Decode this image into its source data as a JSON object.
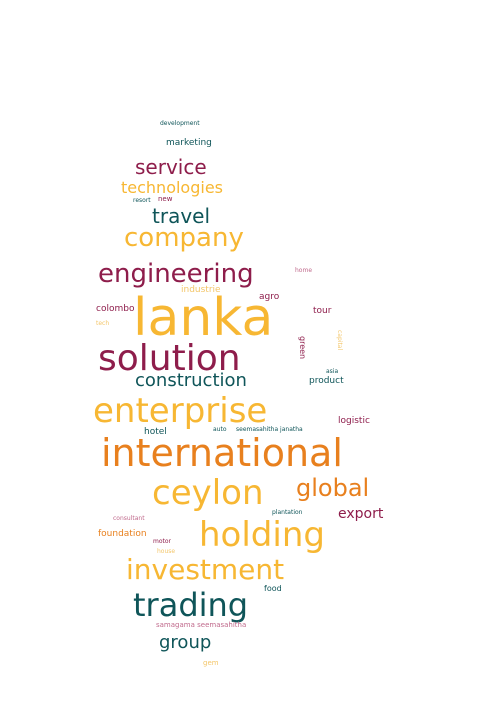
{
  "words": [
    {
      "text": "development",
      "color": "teal"
    },
    {
      "text": "marketing",
      "color": "teal"
    },
    {
      "text": "service",
      "color": "maroon"
    },
    {
      "text": "technologies",
      "color": "yellow"
    },
    {
      "text": "resort",
      "color": "teal"
    },
    {
      "text": "new",
      "color": "maroon"
    },
    {
      "text": "travel",
      "color": "teal"
    },
    {
      "text": "company",
      "color": "yellow"
    },
    {
      "text": "engineering",
      "color": "maroon"
    },
    {
      "text": "lanka",
      "color": "yellow"
    },
    {
      "text": "industrie",
      "color": "lt"
    },
    {
      "text": "agro",
      "color": "maroon"
    },
    {
      "text": "colombo",
      "color": "maroon"
    },
    {
      "text": "tour",
      "color": "maroon"
    },
    {
      "text": "solution",
      "color": "maroon"
    },
    {
      "text": "green",
      "color": "maroon"
    },
    {
      "text": "construction",
      "color": "teal"
    },
    {
      "text": "product",
      "color": "teal"
    },
    {
      "text": "enterprise",
      "color": "yellow"
    },
    {
      "text": "asia",
      "color": "teal"
    },
    {
      "text": "logistic",
      "color": "maroon"
    },
    {
      "text": "hotel",
      "color": "teal"
    },
    {
      "text": "international",
      "color": "orange"
    },
    {
      "text": "ceylon",
      "color": "yellow"
    },
    {
      "text": "global",
      "color": "orange"
    },
    {
      "text": "export",
      "color": "maroon"
    },
    {
      "text": "holding",
      "color": "yellow"
    },
    {
      "text": "plantation",
      "color": "teal"
    },
    {
      "text": "consultant",
      "color": "pink"
    },
    {
      "text": "foundation",
      "color": "orange"
    },
    {
      "text": "motor",
      "color": "maroon"
    },
    {
      "text": "house",
      "color": "lt"
    },
    {
      "text": "investment",
      "color": "yellow"
    },
    {
      "text": "food",
      "color": "teal"
    },
    {
      "text": "trading",
      "color": "teal"
    },
    {
      "text": "samagama seemasahitha",
      "color": "pink"
    },
    {
      "text": "group",
      "color": "teal"
    },
    {
      "text": "gem",
      "color": "lt"
    },
    {
      "text": "seemasahitha janatha",
      "color": "teal"
    },
    {
      "text": "auto",
      "color": "teal"
    },
    {
      "text": "tech",
      "color": "lt"
    },
    {
      "text": "home",
      "color": "pink"
    },
    {
      "text": "capital",
      "color": "lt"
    }
  ]
}
